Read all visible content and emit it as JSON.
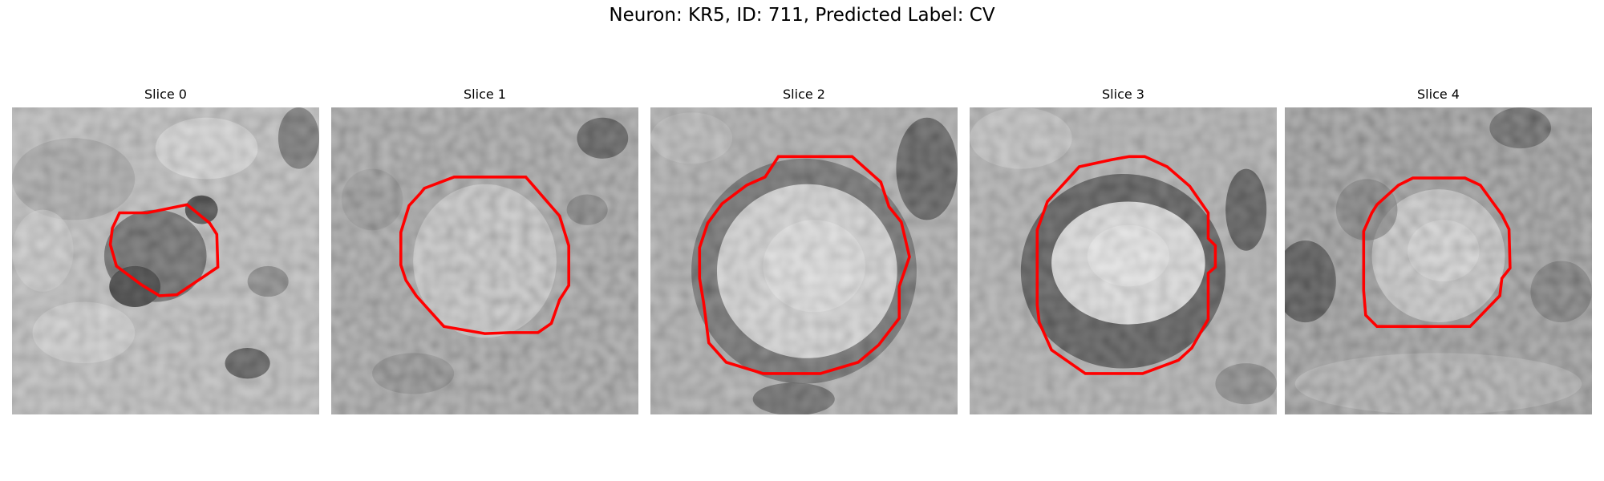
{
  "figure": {
    "title": "Neuron: KR5, ID: 711, Predicted Label: CV"
  },
  "panels": [
    {
      "title": "Slice 0",
      "contour_color": "#ff0000"
    },
    {
      "title": "Slice 1",
      "contour_color": "#ff0000"
    },
    {
      "title": "Slice 2",
      "contour_color": "#ff0000"
    },
    {
      "title": "Slice 3",
      "contour_color": "#ff0000"
    },
    {
      "title": "Slice 4",
      "contour_color": "#ff0000"
    }
  ]
}
